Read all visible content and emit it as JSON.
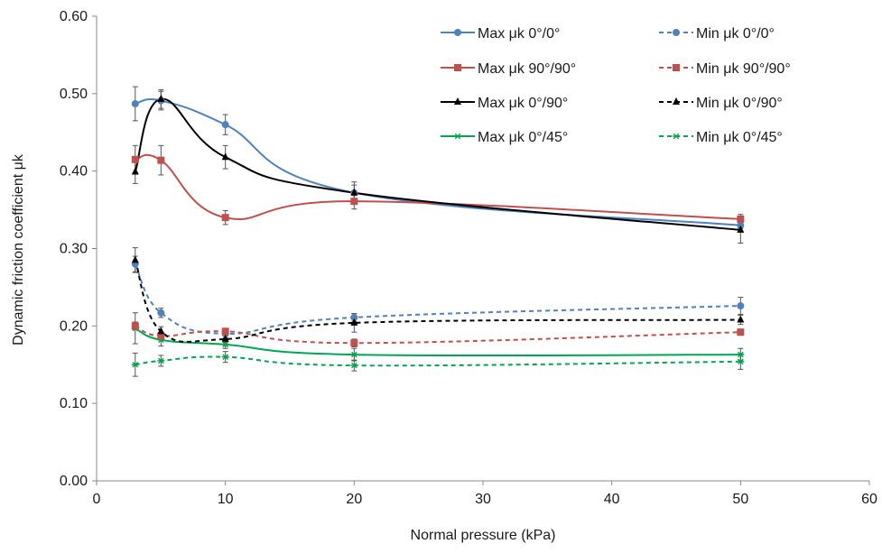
{
  "chart_data": {
    "type": "line",
    "xlabel": "Normal pressure  (kPa)",
    "ylabel": "Dynamic friction coefficient  μk",
    "xlim": [
      0,
      60
    ],
    "ylim": [
      0,
      0.6
    ],
    "x_ticks": [
      "0",
      "10",
      "20",
      "30",
      "40",
      "50",
      "60"
    ],
    "y_ticks": [
      "0.00",
      "0.10",
      "0.20",
      "0.30",
      "0.40",
      "0.50",
      "0.60"
    ],
    "grid": false,
    "legend_position": "top-right",
    "x": [
      3,
      5,
      10,
      20,
      50
    ],
    "series": [
      {
        "name": "Max μk   0°/0°",
        "values": [
          0.487,
          0.491,
          0.46,
          0.372,
          0.33
        ],
        "error": [
          0.022,
          0.012,
          0.013,
          0.01,
          0.004
        ],
        "color": "#4f81bd",
        "dash": "solid",
        "marker": "circle"
      },
      {
        "name": "Max μk   90°/90°",
        "values": [
          0.415,
          0.414,
          0.34,
          0.361,
          0.338
        ],
        "error": [
          0.018,
          0.019,
          0.009,
          0.01,
          0.006
        ],
        "color": "#c0504d",
        "dash": "solid",
        "marker": "square"
      },
      {
        "name": " Max μk   0°/90°",
        "values": [
          0.399,
          0.493,
          0.418,
          0.372,
          0.324
        ],
        "error": [
          0.015,
          0.012,
          0.015,
          0.014,
          0.017
        ],
        "color": "#000000",
        "dash": "solid",
        "marker": "triangle"
      },
      {
        "name": "Max μk   0°/45°",
        "values": [
          0.197,
          0.182,
          0.176,
          0.163,
          0.163
        ],
        "error": [
          0.02,
          0.008,
          0.005,
          0.008,
          0.008
        ],
        "color": "#00a651",
        "dash": "solid",
        "marker": "asterisk"
      },
      {
        "name": "Min μk   0°/0°",
        "values": [
          0.28,
          0.217,
          0.19,
          0.211,
          0.226
        ],
        "error": [
          0.01,
          0.006,
          0.005,
          0.005,
          0.011
        ],
        "color": "#4f81bd",
        "dash": "dashed",
        "marker": "circle"
      },
      {
        "name": "Min μk   90°/90°",
        "values": [
          0.2,
          0.187,
          0.193,
          0.178,
          0.192
        ],
        "error": [
          0.005,
          0.004,
          0.004,
          0.005,
          0.004
        ],
        "color": "#c0504d",
        "dash": "dashed",
        "marker": "square"
      },
      {
        "name": "Min μk   0°/90°",
        "values": [
          0.285,
          0.193,
          0.183,
          0.204,
          0.208
        ],
        "error": [
          0.016,
          0.006,
          0.004,
          0.012,
          0.006
        ],
        "color": "#000000",
        "dash": "dashed",
        "marker": "triangle"
      },
      {
        "name": "Min μk   0°/45°",
        "values": [
          0.15,
          0.155,
          0.16,
          0.149,
          0.154
        ],
        "error": [
          0.015,
          0.007,
          0.007,
          0.007,
          0.01
        ],
        "color": "#00a651",
        "dash": "dashed",
        "marker": "asterisk"
      }
    ],
    "legend": {
      "columns": [
        [
          "Max μk   0°/0°",
          "Max μk   90°/90°",
          " Max μk   0°/90°",
          "Max μk   0°/45°"
        ],
        [
          "Min μk   0°/0°",
          "Min μk   90°/90°",
          "Min μk   0°/90°",
          "Min μk   0°/45°"
        ]
      ]
    }
  }
}
